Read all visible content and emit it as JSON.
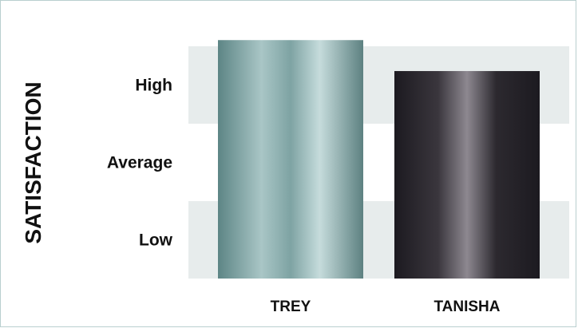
{
  "chart_data": {
    "type": "bar",
    "title": "",
    "ylabel": "SATISFACTION",
    "xlabel": "",
    "categories": [
      "TREY",
      "TANISHA"
    ],
    "values": [
      3.08,
      2.68
    ],
    "ylim": [
      0,
      3
    ],
    "y_levels": [
      "Low",
      "Average",
      "High"
    ],
    "grid": "alternating bands",
    "colors": {
      "TREY": [
        "#5f8686",
        "#c8dcdc"
      ],
      "TANISHA": [
        "#1d1a20",
        "#8d8890"
      ],
      "band": "#e7ecec",
      "frame": "#b9cfcf"
    }
  }
}
